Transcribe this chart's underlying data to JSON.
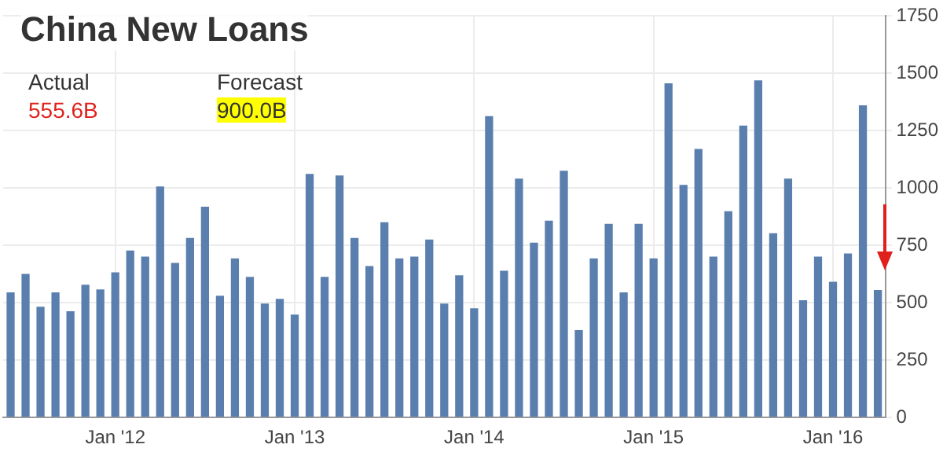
{
  "chart_data": {
    "type": "bar",
    "title": "China New Loans",
    "annotations": [
      "Actual",
      "555.6B",
      "Forecast",
      "900.0B"
    ],
    "categories": [
      null,
      null,
      null,
      null,
      null,
      null,
      null,
      "Jan '12",
      null,
      null,
      null,
      null,
      null,
      null,
      null,
      null,
      null,
      null,
      null,
      "Jan '13",
      null,
      null,
      null,
      null,
      null,
      null,
      null,
      null,
      null,
      null,
      null,
      "Jan '14",
      null,
      null,
      null,
      null,
      null,
      null,
      null,
      null,
      null,
      null,
      null,
      "Jan '15",
      null,
      null,
      null,
      null,
      null,
      null,
      null,
      null,
      null,
      null,
      null,
      "Jan '16",
      null,
      null,
      null
    ],
    "values": [
      545,
      626,
      483,
      545,
      463,
      579,
      558,
      633,
      728,
      701,
      1007,
      674,
      783,
      919,
      531,
      694,
      613,
      497,
      517,
      449,
      1062,
      613,
      1055,
      783,
      660,
      851,
      694,
      701,
      776,
      497,
      620,
      476,
      1314,
      640,
      1041,
      762,
      858,
      1076,
      381,
      694,
      844,
      545,
      844,
      694,
      1457,
      1014,
      1171,
      701,
      899,
      1273,
      1470,
      803,
      1041,
      511,
      701,
      592,
      715,
      1361,
      556
    ],
    "color": "#5a7fae",
    "ylim": [
      0,
      1750
    ],
    "yticks": [
      0,
      250,
      500,
      750,
      1000,
      1250,
      1500,
      1750
    ],
    "grid": true
  }
}
